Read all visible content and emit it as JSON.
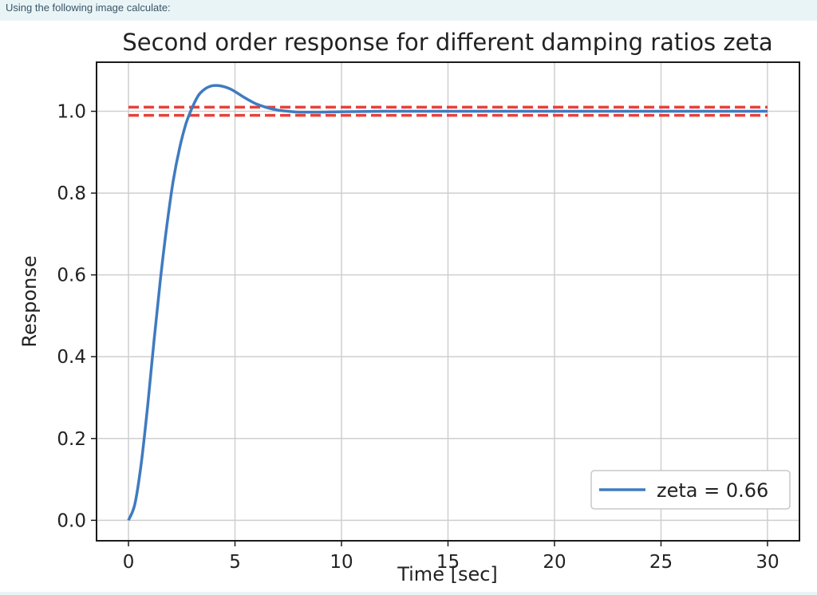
{
  "prompt_text": "Using the following image calculate:",
  "colors": {
    "series": "#3f7bbf",
    "tolerance": "#e8413a",
    "grid": "#cfcfcf",
    "page_bg": "#e9f4f7"
  },
  "chart_data": {
    "type": "line",
    "title": "Second order response for different damping ratios zeta",
    "xlabel": "Time [sec]",
    "ylabel": "Response",
    "xlim": [
      -1.5,
      31.5
    ],
    "ylim": [
      -0.05,
      1.12
    ],
    "xticks": [
      0,
      5,
      10,
      15,
      20,
      25,
      30
    ],
    "xtick_labels": [
      "0",
      "5",
      "10",
      "15",
      "20",
      "25",
      "30"
    ],
    "yticks": [
      0.0,
      0.2,
      0.4,
      0.6,
      0.8,
      1.0
    ],
    "ytick_labels": [
      "0.0",
      "0.2",
      "0.4",
      "0.6",
      "0.8",
      "1.0"
    ],
    "grid": true,
    "legend_position": "lower-right",
    "series": [
      {
        "name": "zeta = 0.66",
        "style": "solid",
        "x": [
          0,
          0.3,
          0.6,
          0.9,
          1.2,
          1.5,
          1.8,
          2.1,
          2.4,
          2.7,
          3.0,
          3.3,
          3.6,
          3.9,
          4.2,
          4.5,
          4.8,
          5.1,
          5.4,
          5.7,
          6.0,
          6.5,
          7.0,
          7.5,
          8.0,
          9.0,
          10,
          12,
          15,
          20,
          25,
          30
        ],
        "y": [
          0.0,
          0.04,
          0.14,
          0.28,
          0.44,
          0.59,
          0.72,
          0.83,
          0.91,
          0.97,
          1.01,
          1.04,
          1.055,
          1.062,
          1.063,
          1.06,
          1.054,
          1.045,
          1.035,
          1.026,
          1.018,
          1.009,
          1.003,
          1.0,
          0.998,
          0.998,
          0.999,
          1.0,
          1.0,
          1.0,
          1.0,
          1.0
        ]
      }
    ],
    "reference_lines": [
      {
        "y": 1.01,
        "x_range": [
          0,
          30
        ],
        "style": "dashed"
      },
      {
        "y": 0.99,
        "x_range": [
          0,
          30
        ],
        "style": "dashed"
      }
    ]
  }
}
